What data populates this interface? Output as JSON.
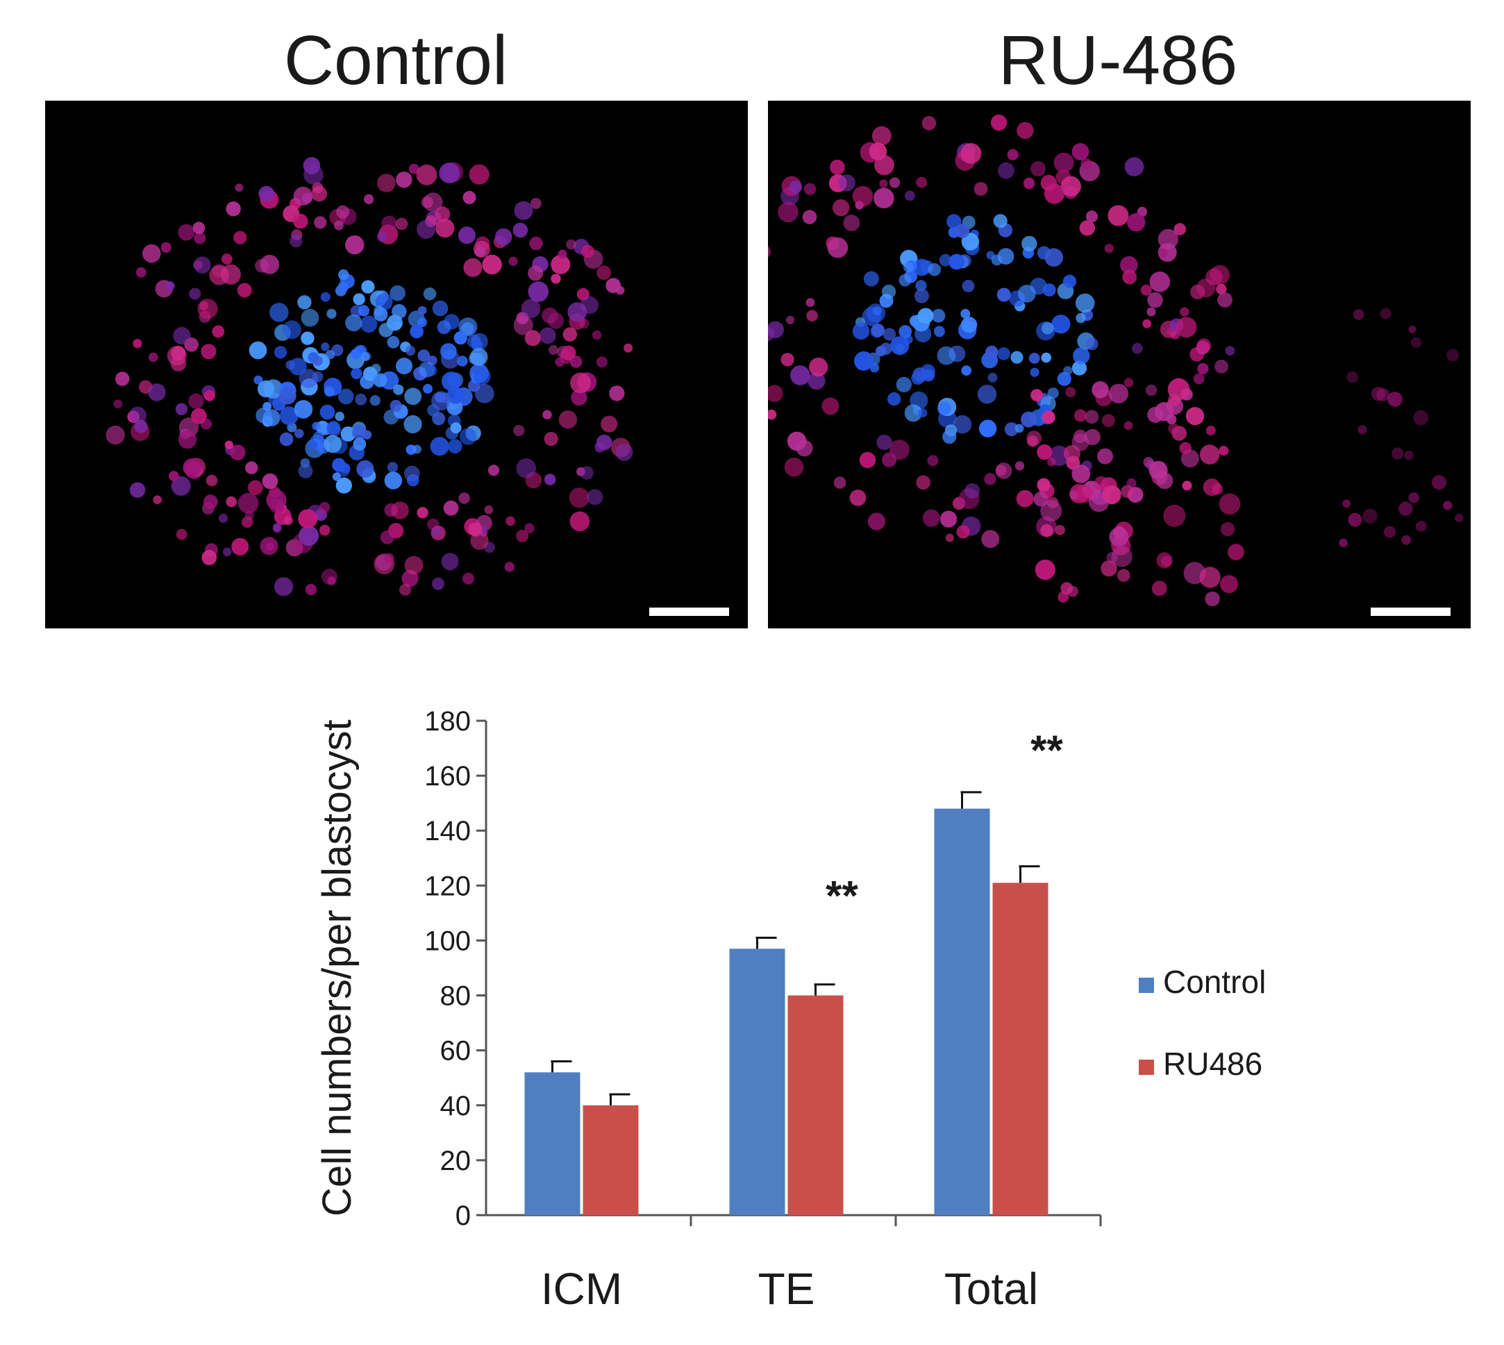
{
  "panels": {
    "left_title": "Control",
    "right_title": "RU-486"
  },
  "colors": {
    "control": "#4f7fc0",
    "ru486": "#c9504a",
    "axis": "#555555"
  },
  "chart_data": {
    "type": "bar",
    "categories": [
      "ICM",
      "TE",
      "Total"
    ],
    "series": [
      {
        "name": "Control",
        "values": [
          52,
          97,
          148
        ],
        "errors": [
          4,
          4,
          6
        ]
      },
      {
        "name": "RU486",
        "values": [
          40,
          80,
          121
        ],
        "errors": [
          4,
          4,
          6
        ]
      }
    ],
    "significance": [
      "",
      "**",
      "**"
    ],
    "ylabel": "Cell numbers/per blastocyst",
    "xlabel": "",
    "ylim": [
      0,
      180
    ],
    "yticks": [
      0,
      20,
      40,
      60,
      80,
      100,
      120,
      140,
      160,
      180
    ],
    "grid": false,
    "legend": "right"
  }
}
